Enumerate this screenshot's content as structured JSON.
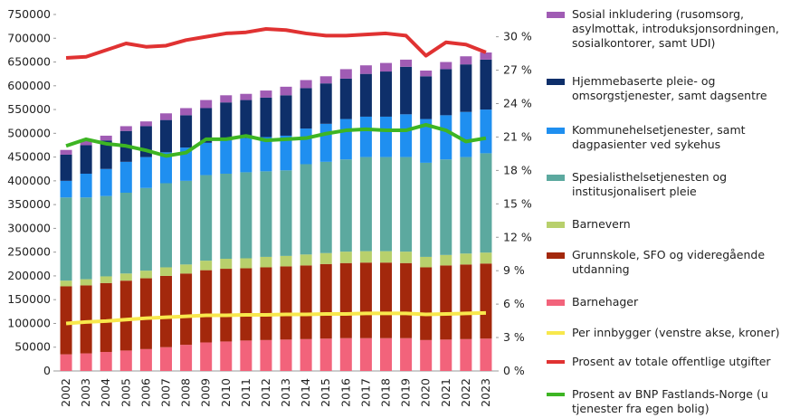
{
  "chart_data": {
    "type": "bar",
    "stacked": true,
    "categories": [
      "2002",
      "2003",
      "2004",
      "2005",
      "2006",
      "2007",
      "2008",
      "2009",
      "2010",
      "2011",
      "2012",
      "2013",
      "2014",
      "2015",
      "2016",
      "2017",
      "2018",
      "2019",
      "2020",
      "2021",
      "2022",
      "2023"
    ],
    "ylim": [
      0,
      750000
    ],
    "yticks": [
      0,
      50000,
      100000,
      150000,
      200000,
      250000,
      300000,
      350000,
      400000,
      450000,
      500000,
      550000,
      600000,
      650000,
      700000,
      750000
    ],
    "y2lim": [
      0,
      32
    ],
    "y2ticks": [
      {
        "value": 0,
        "label": "0 %"
      },
      {
        "value": 3,
        "label": "3 %"
      },
      {
        "value": 6,
        "label": "6 %"
      },
      {
        "value": 9,
        "label": "9 %"
      },
      {
        "value": 12,
        "label": "12 %"
      },
      {
        "value": 15,
        "label": "15 %"
      },
      {
        "value": 18,
        "label": "18 %"
      },
      {
        "value": 21,
        "label": "21 %"
      },
      {
        "value": 24,
        "label": "24 %"
      },
      {
        "value": 27,
        "label": "27 %"
      },
      {
        "value": 30,
        "label": "30 %"
      }
    ],
    "series": [
      {
        "name": "Sosial inkludering (rusomsorg, asylmottak, introduksjonsordningen, sosialkontorer, samt UDI)",
        "type": "bar",
        "color": "#a05cb4",
        "values": [
          10000,
          10000,
          10000,
          10000,
          10000,
          14000,
          15000,
          17000,
          15000,
          13000,
          15000,
          18000,
          17000,
          15000,
          20000,
          18000,
          18000,
          15000,
          12000,
          15000,
          17000,
          15000
        ]
      },
      {
        "name": "Hjemmebaserte pleie- og omsorgstjenester, samt dagsentre",
        "type": "bar",
        "color": "#0e2f6a",
        "values": [
          55000,
          60000,
          60000,
          65000,
          65000,
          68000,
          68000,
          73000,
          80000,
          80000,
          83000,
          85000,
          85000,
          85000,
          85000,
          90000,
          95000,
          100000,
          90000,
          97000,
          100000,
          105000
        ]
      },
      {
        "name": "Kommunehelsetjenester, samt dagpasienter ved sykehus",
        "type": "bar",
        "color": "#1f8ff0",
        "values": [
          35000,
          50000,
          57000,
          65000,
          65000,
          65000,
          70000,
          68000,
          70000,
          72000,
          72000,
          73000,
          75000,
          80000,
          85000,
          85000,
          85000,
          90000,
          92000,
          93000,
          95000,
          92000
        ]
      },
      {
        "name": "Spesialisthelsetjenesten og institusjonalisert pleie",
        "type": "bar",
        "color": "#5ca99f",
        "values": [
          175000,
          172000,
          169000,
          170000,
          174000,
          177000,
          176000,
          180000,
          179000,
          181000,
          180000,
          180000,
          190000,
          192000,
          194000,
          198000,
          198000,
          199000,
          198000,
          201000,
          203000,
          209000
        ]
      },
      {
        "name": "Barnevern",
        "type": "bar",
        "color": "#b8d06c",
        "values": [
          12000,
          13000,
          14000,
          15000,
          16000,
          18000,
          19000,
          20000,
          21000,
          21000,
          22000,
          22000,
          23000,
          23000,
          24000,
          24000,
          24000,
          24000,
          22000,
          22000,
          23000,
          23000
        ]
      },
      {
        "name": "Grunnskole, SFO og videregående utdanning",
        "type": "bar",
        "color": "#a3280c",
        "values": [
          143000,
          143000,
          145000,
          147000,
          149000,
          150000,
          150000,
          152000,
          153000,
          152000,
          153000,
          154000,
          155000,
          157000,
          158000,
          159000,
          159000,
          158000,
          153000,
          156000,
          157000,
          158000
        ]
      },
      {
        "name": "Barnehager",
        "type": "bar",
        "color": "#f2637b",
        "values": [
          35000,
          37000,
          40000,
          43000,
          46000,
          50000,
          55000,
          60000,
          62000,
          64000,
          65000,
          66000,
          67000,
          68000,
          69000,
          69000,
          69000,
          69000,
          65000,
          66000,
          67000,
          68000
        ]
      },
      {
        "name": "Per innbygger (venstre akse, kroner)",
        "type": "line",
        "color": "#f8e84c",
        "values": [
          100000,
          103000,
          105000,
          108000,
          111000,
          113000,
          115000,
          117000,
          117000,
          118000,
          118000,
          119000,
          119000,
          120000,
          120000,
          121000,
          121000,
          121000,
          119000,
          120000,
          121000,
          122000
        ]
      },
      {
        "name": "Prosent av totale offentlige utgifter",
        "type": "line",
        "axis": "y2",
        "color": "#e03232",
        "values": [
          28.1,
          28.2,
          28.8,
          29.4,
          29.1,
          29.2,
          29.7,
          30.0,
          30.3,
          30.4,
          30.7,
          30.6,
          30.3,
          30.1,
          30.1,
          30.2,
          30.3,
          30.1,
          28.3,
          29.5,
          29.3,
          28.6
        ]
      },
      {
        "name": "Prosent av BNP Fastlands-Norge (u tjenester fra egen bolig)",
        "type": "line",
        "axis": "y2",
        "color": "#3db523",
        "values": [
          20.2,
          20.8,
          20.4,
          20.2,
          19.8,
          19.3,
          19.6,
          20.8,
          20.8,
          21.1,
          20.7,
          20.8,
          20.9,
          21.3,
          21.6,
          21.7,
          21.6,
          21.6,
          22.1,
          21.6,
          20.6,
          20.9
        ]
      }
    ]
  }
}
